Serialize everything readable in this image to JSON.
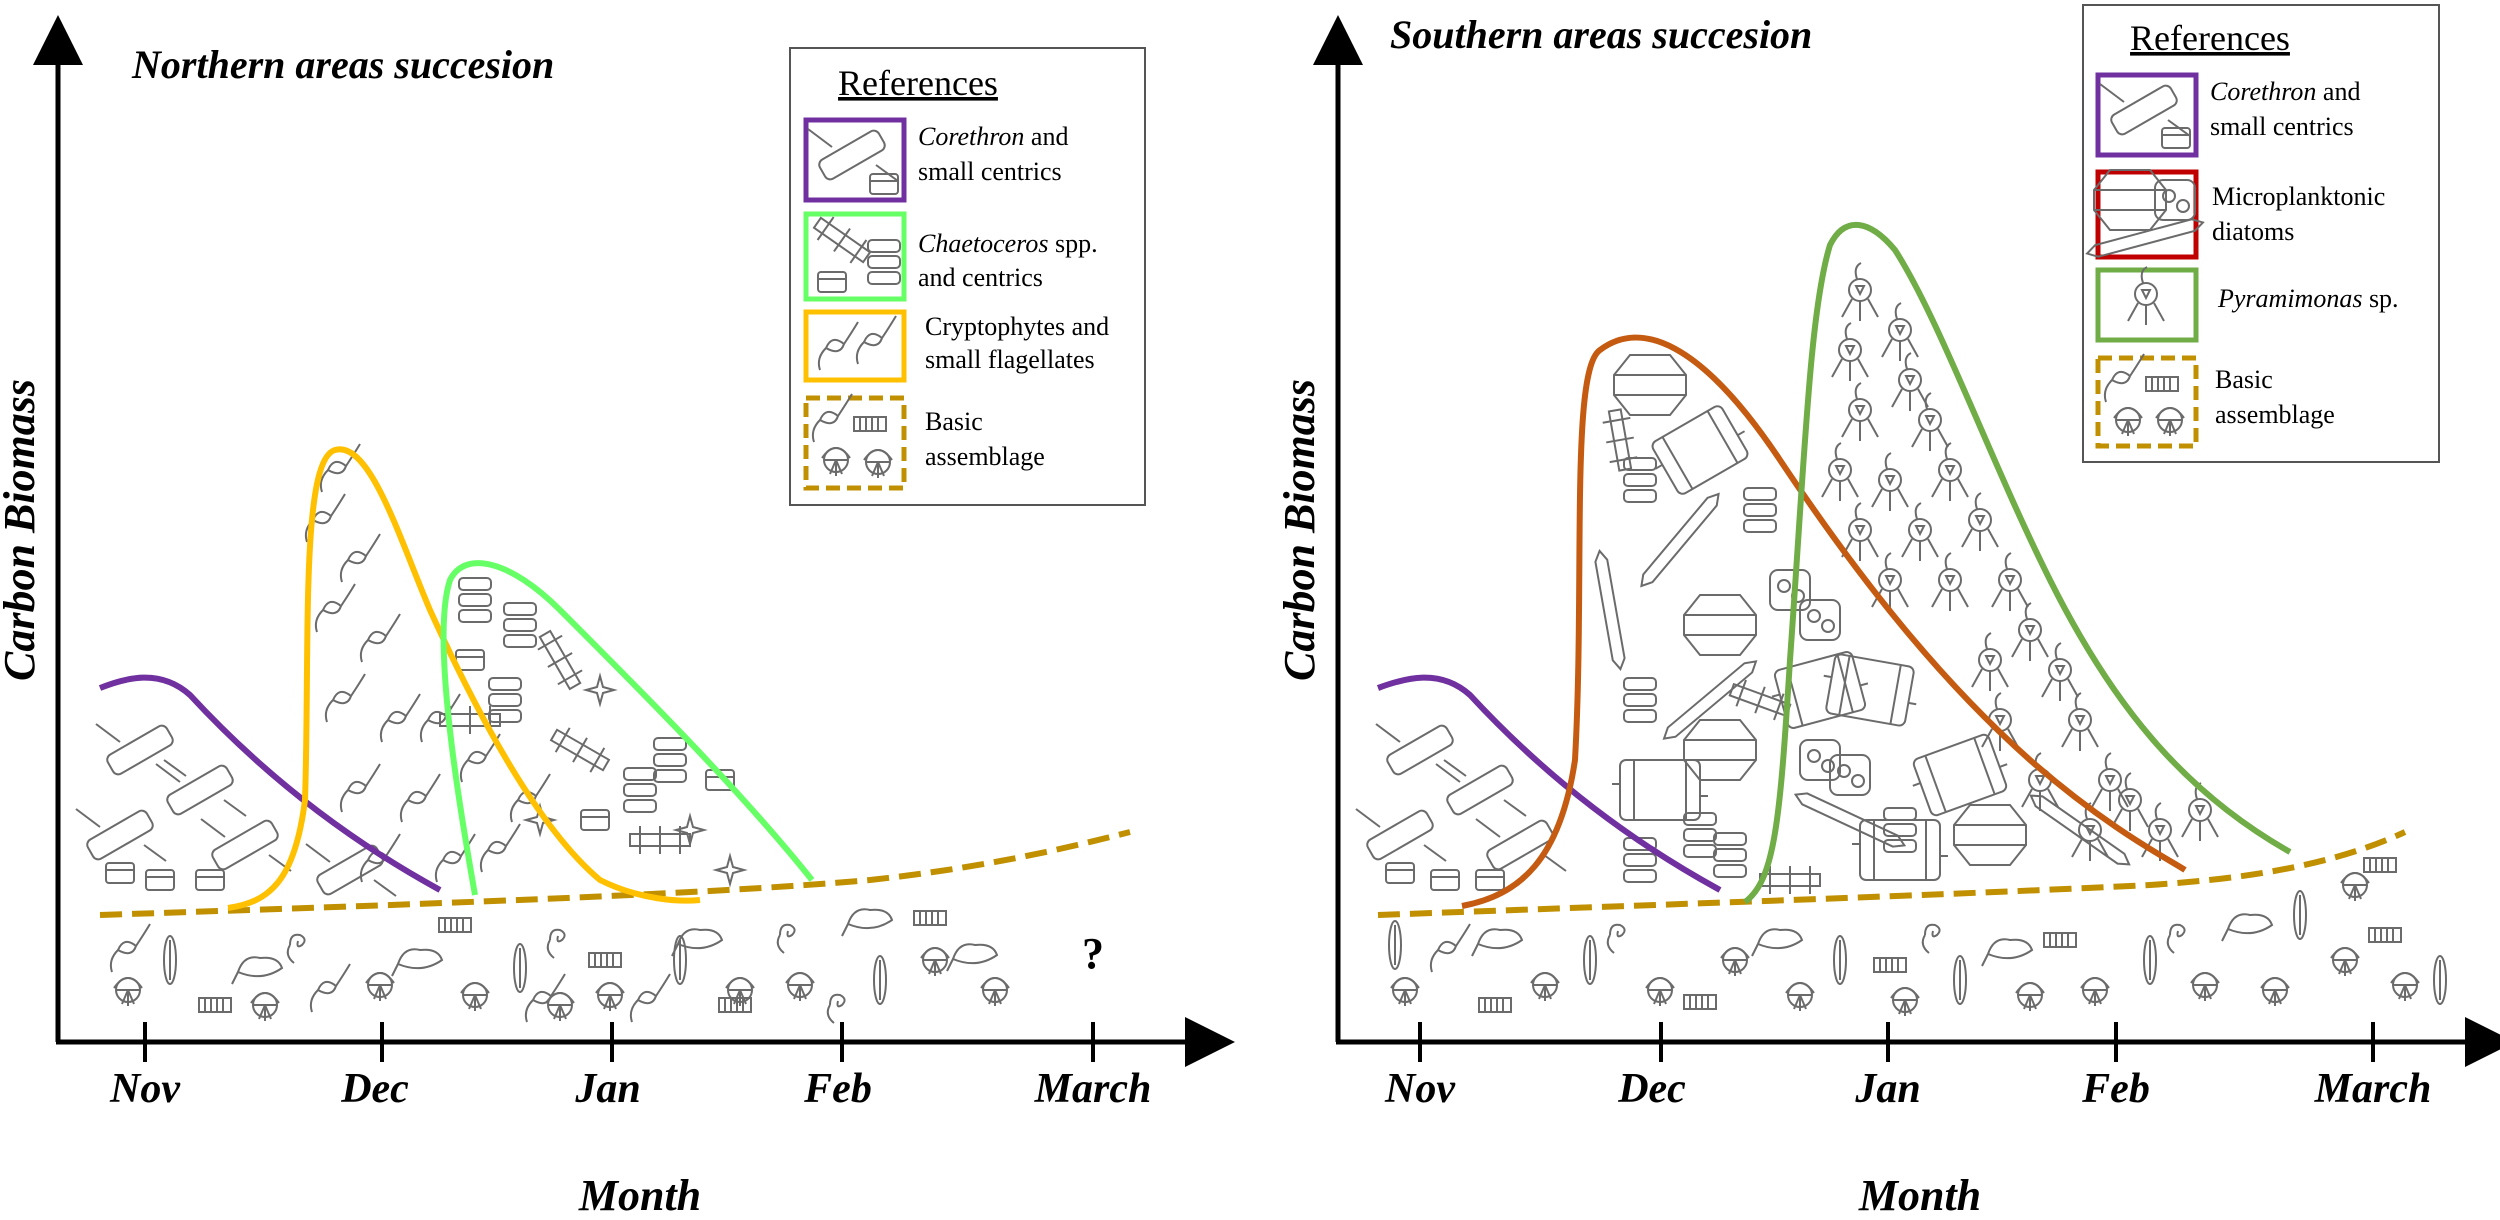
{
  "colors": {
    "corethron": "#7030a0",
    "chaetoceros": "#66ff66",
    "cryptophytes": "#ffc000",
    "basic": "#c09000",
    "microplanktonic": "#c55a11",
    "microplanktonic_box": "#c00000",
    "pyramimonas": "#70ad47"
  },
  "left_panel": {
    "title": "Northern areas succesion",
    "ylabel": "Carbon Biomass",
    "xlabel": "Month",
    "months": [
      "Nov",
      "Dec",
      "Jan",
      "Feb",
      "March"
    ],
    "question_mark": "?",
    "references": {
      "heading": "References",
      "items": [
        {
          "line1_italic": "Corethron",
          "line1_rest": " and",
          "line2": "small centrics"
        },
        {
          "line1_italic": "Chaetoceros",
          "line1_rest": " spp.",
          "line2": "and centrics"
        },
        {
          "line1_italic": "",
          "line1_rest": "Cryptophytes and",
          "line2": "small flagellates"
        },
        {
          "line1_italic": "",
          "line1_rest": "Basic",
          "line2": "assemblage"
        }
      ]
    }
  },
  "right_panel": {
    "title": "Southern areas succesion",
    "ylabel": "Carbon Biomass",
    "xlabel": "Month",
    "months": [
      "Nov",
      "Dec",
      "Jan",
      "Feb",
      "March"
    ],
    "references": {
      "heading": "References",
      "items": [
        {
          "line1_italic": "Corethron",
          "line1_rest": " and",
          "line2": "small centrics"
        },
        {
          "line1_italic": "",
          "line1_rest": "Microplanktonic",
          "line2": "diatoms"
        },
        {
          "line1_italic": "Pyramimonas",
          "line1_rest": " sp.",
          "line2": ""
        },
        {
          "line1_italic": "",
          "line1_rest": "Basic",
          "line2": "assemblage"
        }
      ]
    }
  }
}
